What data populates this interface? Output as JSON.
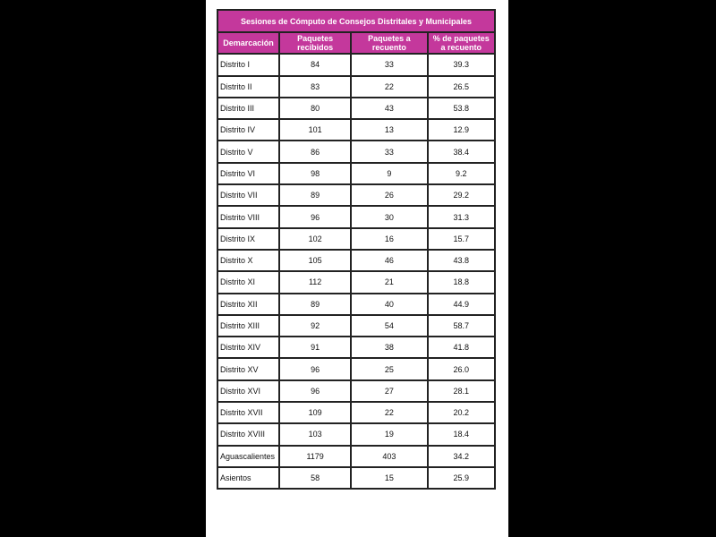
{
  "title": "Sesiones de Cómputo de Consejos Distritales y Municipales",
  "header_color": "#c4389c",
  "columns": [
    "Demarcación",
    "Paquetes recibidos",
    "Paquetes a recuento",
    "% de paquetes a recuento"
  ],
  "rows": [
    [
      "Distrito I",
      "84",
      "33",
      "39.3"
    ],
    [
      "Distrito II",
      "83",
      "22",
      "26.5"
    ],
    [
      "Distrito III",
      "80",
      "43",
      "53.8"
    ],
    [
      "Distrito IV",
      "101",
      "13",
      "12.9"
    ],
    [
      "Distrito V",
      "86",
      "33",
      "38.4"
    ],
    [
      "Distrito VI",
      "98",
      "9",
      "9.2"
    ],
    [
      "Distrito VII",
      "89",
      "26",
      "29.2"
    ],
    [
      "Distrito VIII",
      "96",
      "30",
      "31.3"
    ],
    [
      "Distrito IX",
      "102",
      "16",
      "15.7"
    ],
    [
      "Distrito X",
      "105",
      "46",
      "43.8"
    ],
    [
      "Distrito XI",
      "112",
      "21",
      "18.8"
    ],
    [
      "Distrito XII",
      "89",
      "40",
      "44.9"
    ],
    [
      "Distrito XIII",
      "92",
      "54",
      "58.7"
    ],
    [
      "Distrito XIV",
      "91",
      "38",
      "41.8"
    ],
    [
      "Distrito XV",
      "96",
      "25",
      "26.0"
    ],
    [
      "Distrito XVI",
      "96",
      "27",
      "28.1"
    ],
    [
      "Distrito XVII",
      "109",
      "22",
      "20.2"
    ],
    [
      "Distrito XVIII",
      "103",
      "19",
      "18.4"
    ],
    [
      "Aguascalientes",
      "1179",
      "403",
      "34.2"
    ],
    [
      "Asientos",
      "58",
      "15",
      "25.9"
    ]
  ]
}
